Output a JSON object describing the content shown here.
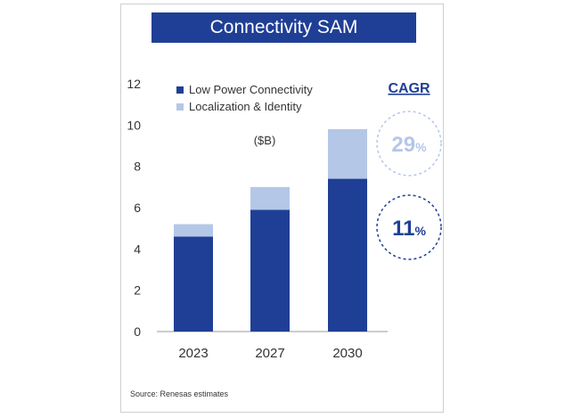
{
  "chart_data": {
    "type": "bar",
    "stacked": true,
    "title": "Connectivity SAM",
    "unit_label": "($B)",
    "categories": [
      "2023",
      "2027",
      "2030"
    ],
    "series": [
      {
        "name": "Low Power Connectivity",
        "color": "#1f3f96",
        "values": [
          4.6,
          5.9,
          7.4
        ]
      },
      {
        "name": "Localization & Identity",
        "color": "#b4c7e7",
        "values": [
          0.6,
          1.1,
          2.4
        ]
      }
    ],
    "ylim": [
      0,
      12
    ],
    "yticks": [
      "0",
      "2",
      "4",
      "6",
      "8",
      "10",
      "12"
    ],
    "grid": false,
    "legend_position": "top-left",
    "cagr": {
      "title": "CAGR",
      "values": [
        {
          "number": "29",
          "suffix": "%",
          "series": "Localization & Identity",
          "color": "#b4c7e7"
        },
        {
          "number": "11",
          "suffix": "%",
          "series": "Low Power Connectivity",
          "color": "#1f3f96"
        }
      ]
    },
    "source": "Source: Renesas estimates"
  }
}
